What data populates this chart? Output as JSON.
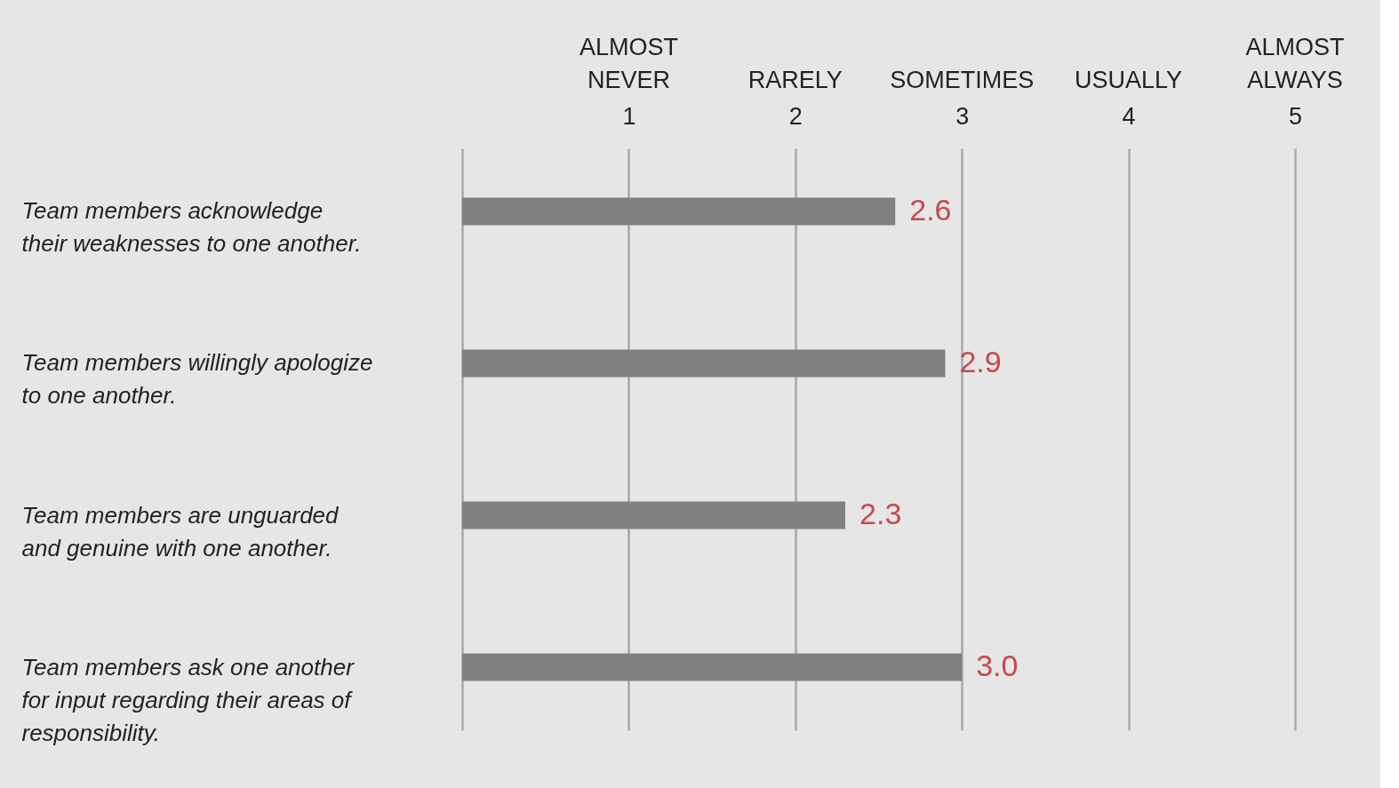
{
  "chart_data": {
    "type": "bar",
    "orientation": "horizontal",
    "categories": [
      "Team members acknowledge\ntheir weaknesses to one another.",
      "Team members willingly apologize\nto one another.",
      "Team members are unguarded\nand genuine with one another.",
      "Team members ask one another\nfor input regarding their areas of\nresponsibility."
    ],
    "values": [
      2.6,
      2.9,
      2.3,
      3.0
    ],
    "value_labels": [
      "2.6",
      "2.9",
      "2.3",
      "3.0"
    ],
    "color": "#808080",
    "xlim": [
      0,
      5
    ],
    "xticks": [
      {
        "value": 0,
        "label": null
      },
      1,
      2,
      3,
      4,
      5
    ],
    "annotations": [
      "ALMOST\nNEVER",
      "RARELY",
      "SOMETIMES",
      "USUALLY",
      "ALMOST\nALWAYS"
    ],
    "grid": "x"
  }
}
